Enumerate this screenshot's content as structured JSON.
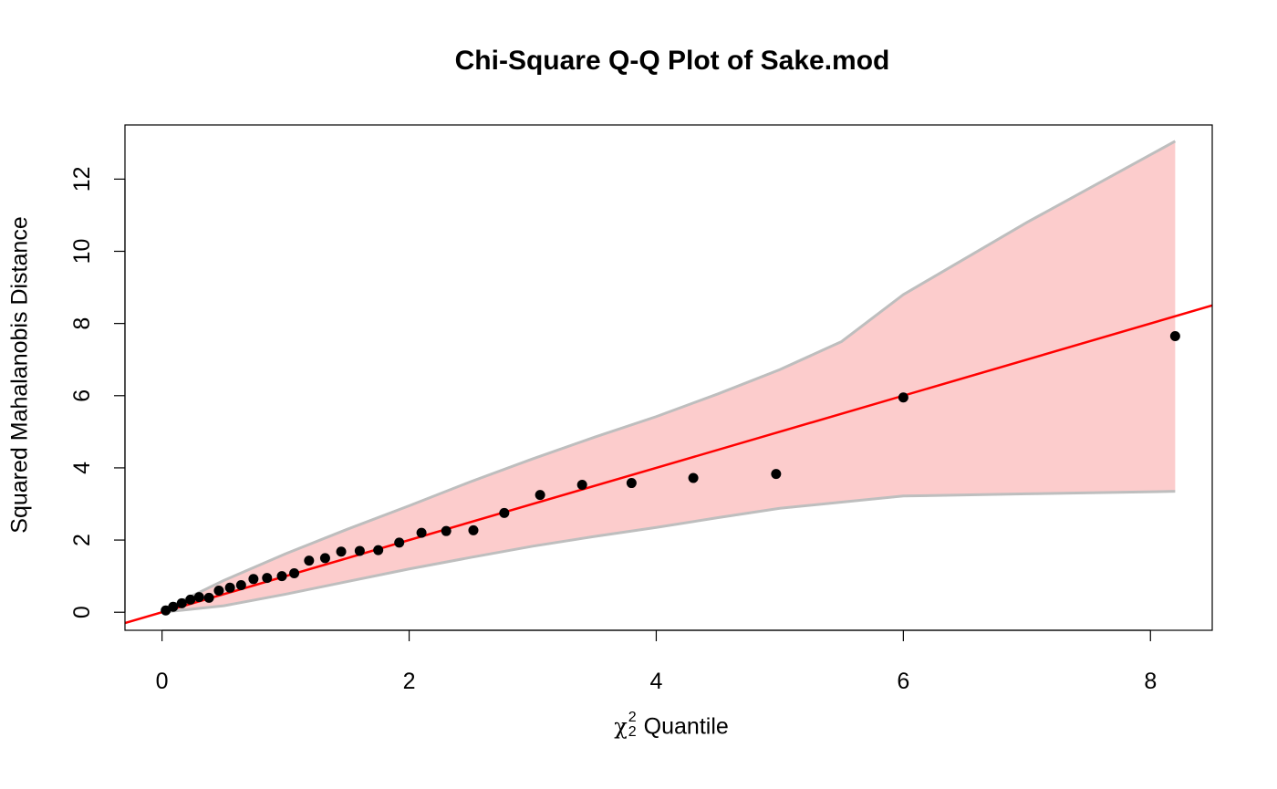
{
  "chart_data": {
    "type": "scatter",
    "title": "Chi-Square Q-Q Plot of Sake.mod",
    "xlabel": {
      "symbol": "χ",
      "superscript": "2",
      "subscript": "2",
      "text": "Quantile"
    },
    "ylabel": "Squared Mahalanobis Distance",
    "xlim": [
      -0.3,
      8.5
    ],
    "ylim": [
      -0.5,
      13.5
    ],
    "xticks": [
      0,
      2,
      4,
      6,
      8
    ],
    "yticks": [
      0,
      2,
      4,
      6,
      8,
      10,
      12
    ],
    "grid": false,
    "points": {
      "x": [
        0.03,
        0.09,
        0.16,
        0.23,
        0.3,
        0.38,
        0.46,
        0.55,
        0.64,
        0.74,
        0.85,
        0.97,
        1.07,
        1.19,
        1.32,
        1.45,
        1.6,
        1.75,
        1.92,
        2.1,
        2.3,
        2.52,
        2.77,
        3.06,
        3.4,
        3.8,
        4.3,
        4.97,
        6.0,
        8.2
      ],
      "y": [
        0.05,
        0.15,
        0.25,
        0.35,
        0.42,
        0.4,
        0.6,
        0.68,
        0.75,
        0.92,
        0.95,
        1.0,
        1.08,
        1.43,
        1.5,
        1.68,
        1.7,
        1.72,
        1.93,
        2.2,
        2.25,
        2.27,
        2.75,
        3.25,
        3.53,
        3.58,
        3.72,
        3.83,
        5.95,
        7.65
      ],
      "color": "#000000"
    },
    "reference_line": {
      "intercept": 0.0,
      "slope": 1.0,
      "color": "#ff0000"
    },
    "confidence_band": {
      "x": [
        0.0,
        0.5,
        1.0,
        1.5,
        2.0,
        2.5,
        3.0,
        3.5,
        4.0,
        4.5,
        5.0,
        5.5,
        6.0,
        7.0,
        8.2
      ],
      "upper": [
        0.05,
        0.88,
        1.62,
        2.3,
        2.95,
        3.62,
        4.25,
        4.85,
        5.42,
        6.05,
        6.72,
        7.5,
        8.8,
        10.8,
        13.05
      ],
      "lower": [
        0.0,
        0.18,
        0.5,
        0.85,
        1.2,
        1.52,
        1.83,
        2.1,
        2.35,
        2.62,
        2.88,
        3.05,
        3.22,
        3.28,
        3.35
      ],
      "fill": "#fccccc",
      "edge": "#bebebe"
    }
  }
}
